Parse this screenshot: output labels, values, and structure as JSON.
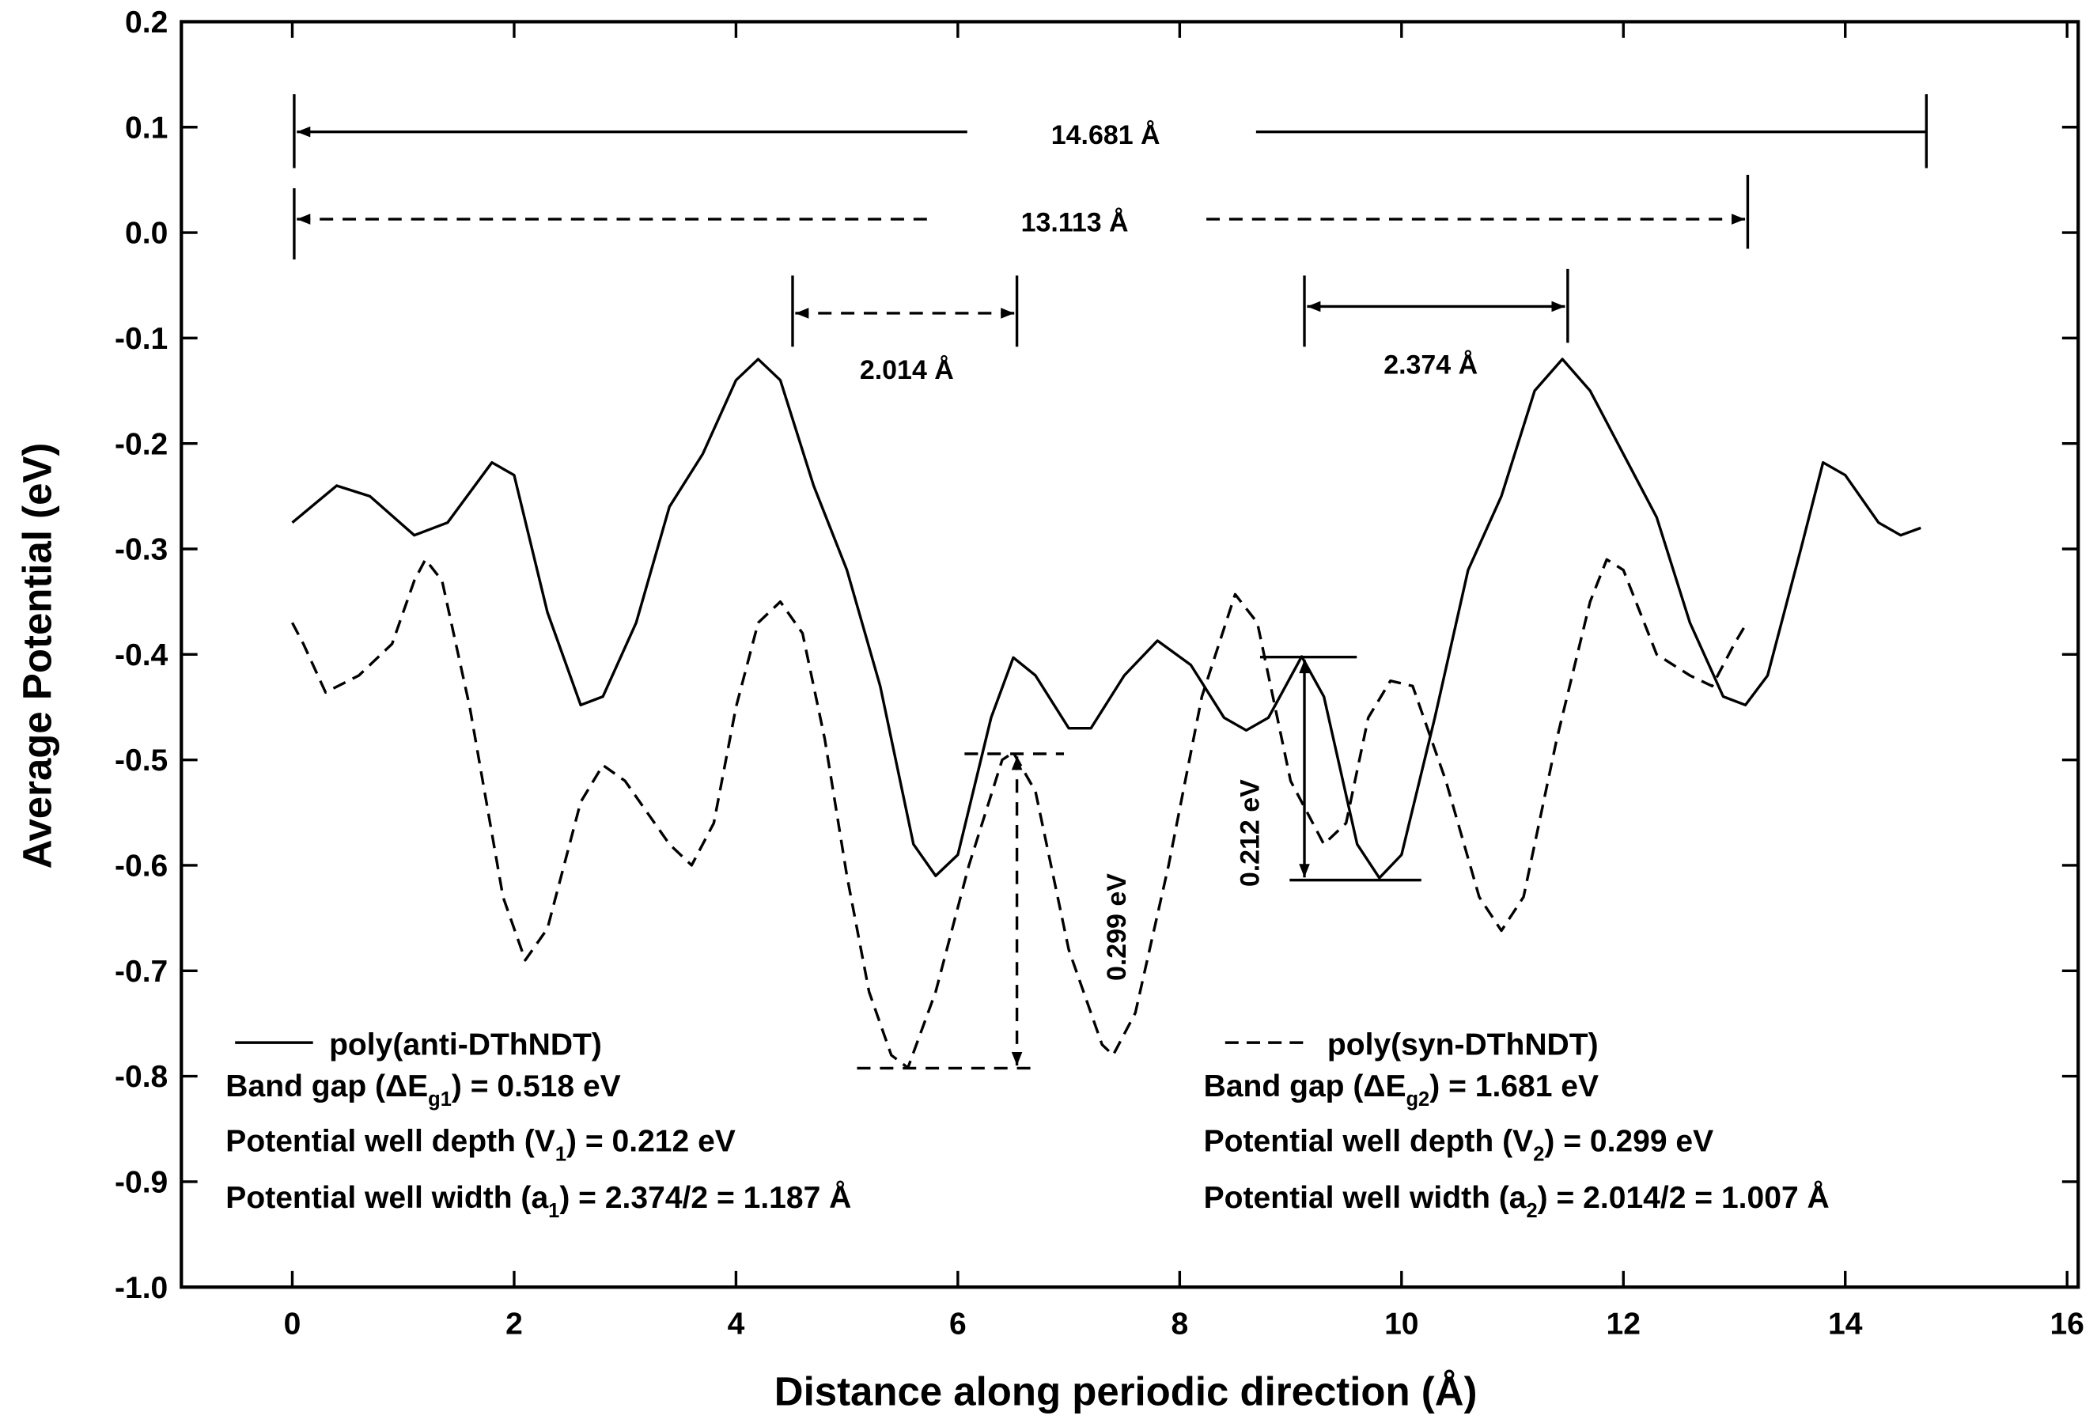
{
  "chart_data": {
    "type": "line",
    "xlabel": "Distance along periodic direction (Å)",
    "ylabel": "Average Potential (eV)",
    "xlim": [
      -1,
      16.1
    ],
    "ylim": [
      -1,
      0.2
    ],
    "xticks": [
      0,
      2,
      4,
      6,
      8,
      10,
      12,
      14,
      16
    ],
    "yticks": [
      0.2,
      0.1,
      {
        "value": 0,
        "label": "0.0"
      },
      -0.1,
      -0.2,
      -0.3,
      -0.4,
      -0.5,
      -0.6,
      -0.7,
      -0.8,
      -0.9,
      {
        "value": -1,
        "label": "-1.0"
      }
    ],
    "series": [
      {
        "name": "poly(anti-DThNDT)",
        "color": "#000000",
        "dash": "solid",
        "x": [
          0,
          0.4,
          0.7,
          1.1,
          1.4,
          1.8,
          2.0,
          2.3,
          2.6,
          2.8,
          3.1,
          3.4,
          3.7,
          4.0,
          4.2,
          4.4,
          4.7,
          5.0,
          5.3,
          5.6,
          5.8,
          6.0,
          6.3,
          6.5,
          6.7,
          7.0,
          7.2,
          7.5,
          7.8,
          8.1,
          8.4,
          8.6,
          8.8,
          9.1,
          9.3,
          9.6,
          9.8,
          10.0,
          10.3,
          10.6,
          10.9,
          11.2,
          11.45,
          11.7,
          12.0,
          12.3,
          12.6,
          12.9,
          13.1,
          13.3,
          13.6,
          13.8,
          14.0,
          14.3,
          14.5,
          14.681
        ],
        "values": [
          -0.275,
          -0.24,
          -0.25,
          -0.287,
          -0.275,
          -0.218,
          -0.23,
          -0.36,
          -0.448,
          -0.44,
          -0.37,
          -0.26,
          -0.21,
          -0.14,
          -0.12,
          -0.14,
          -0.24,
          -0.32,
          -0.43,
          -0.58,
          -0.61,
          -0.59,
          -0.46,
          -0.403,
          -0.42,
          -0.47,
          -0.47,
          -0.42,
          -0.387,
          -0.41,
          -0.46,
          -0.472,
          -0.46,
          -0.402,
          -0.44,
          -0.58,
          -0.612,
          -0.59,
          -0.46,
          -0.32,
          -0.25,
          -0.15,
          -0.12,
          -0.15,
          -0.21,
          -0.27,
          -0.37,
          -0.44,
          -0.448,
          -0.42,
          -0.3,
          -0.218,
          -0.23,
          -0.275,
          -0.287,
          -0.28
        ]
      },
      {
        "name": "poly(syn-DThNDT)",
        "color": "#000000",
        "dash": "dashed",
        "x": [
          0,
          0.1,
          0.3,
          0.6,
          0.9,
          1.1,
          1.2,
          1.35,
          1.6,
          1.9,
          2.1,
          2.3,
          2.6,
          2.8,
          3.0,
          3.2,
          3.4,
          3.6,
          3.8,
          4.0,
          4.2,
          4.4,
          4.6,
          4.8,
          5.0,
          5.2,
          5.4,
          5.55,
          5.8,
          6.1,
          6.4,
          6.5,
          6.7,
          7.0,
          7.3,
          7.4,
          7.6,
          7.9,
          8.2,
          8.5,
          8.7,
          9.0,
          9.3,
          9.5,
          9.7,
          9.9,
          10.1,
          10.4,
          10.7,
          10.9,
          11.1,
          11.4,
          11.7,
          11.85,
          12.0,
          12.3,
          12.6,
          12.8,
          13.0,
          13.113
        ],
        "values": [
          -0.37,
          -0.39,
          -0.436,
          -0.42,
          -0.39,
          -0.33,
          -0.31,
          -0.33,
          -0.45,
          -0.63,
          -0.69,
          -0.66,
          -0.54,
          -0.505,
          -0.52,
          -0.55,
          -0.58,
          -0.6,
          -0.56,
          -0.45,
          -0.37,
          -0.35,
          -0.38,
          -0.48,
          -0.61,
          -0.72,
          -0.78,
          -0.792,
          -0.72,
          -0.6,
          -0.5,
          -0.493,
          -0.53,
          -0.68,
          -0.77,
          -0.78,
          -0.74,
          -0.6,
          -0.44,
          -0.343,
          -0.37,
          -0.52,
          -0.58,
          -0.56,
          -0.46,
          -0.425,
          -0.43,
          -0.52,
          -0.63,
          -0.662,
          -0.63,
          -0.48,
          -0.35,
          -0.31,
          -0.32,
          -0.4,
          -0.42,
          -0.43,
          -0.39,
          -0.37
        ]
      }
    ],
    "annotations": [
      "14.681 Å",
      "13.113 Å",
      "2.014 Å",
      "2.374 Å",
      "0.299 eV",
      "0.212 eV"
    ],
    "info_left": [
      [
        "Band gap (ΔE",
        "g1",
        ") = 0.518 eV"
      ],
      [
        "Potential well depth (V",
        "1",
        ") = 0.212 eV"
      ],
      [
        "Potential well width (a",
        "1",
        ") = 2.374/2 = 1.187 Å"
      ]
    ],
    "info_right": [
      [
        "Band gap (ΔE",
        "g2",
        ") = 1.681 eV"
      ],
      [
        "Potential well depth (V",
        "2",
        ") = 0.299 eV"
      ],
      [
        "Potential well width (a",
        "2",
        ") = 2.014/2 = 1.007 Å"
      ]
    ]
  }
}
